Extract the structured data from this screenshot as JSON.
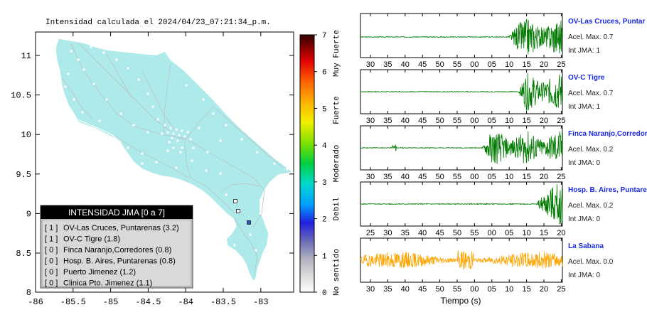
{
  "map": {
    "title": "Intensidad calculada el 2024/04/23_07:21:34_p.m.",
    "xticks": [
      "-86",
      "-85.5",
      "-85",
      "-84.5",
      "-84",
      "-83.5",
      "-83"
    ],
    "yticks": [
      "11",
      "10.5",
      "10",
      "9.5",
      "9",
      "8.5",
      "8"
    ],
    "land_color": "#aeeaea",
    "station_marker_color": "#3050c0"
  },
  "legend": {
    "title": "INTENSIDAD JMA [0 a 7]",
    "items": [
      {
        "jma": "[ 1 ]",
        "label": "OV-Las Cruces, Puntarenas (3.2)"
      },
      {
        "jma": "[ 1 ]",
        "label": "OV-C Tigre (1.8)"
      },
      {
        "jma": "[ 0 ]",
        "label": "Finca Naranjo,Corredores (0.8)"
      },
      {
        "jma": "[ 0 ]",
        "label": "Hosp. B. Aires, Puntarenas (0.8)"
      },
      {
        "jma": "[ 0 ]",
        "label": "Puerto Jimenez (1.2)"
      },
      {
        "jma": "[ 0 ]",
        "label": "Clinica Pto. Jimenez (1.1)"
      }
    ]
  },
  "colorbar": {
    "ticks": [
      "0",
      "1",
      "2",
      "3",
      "4",
      "5",
      "6",
      "7"
    ],
    "categories": [
      "No sentido",
      "Debil",
      "Moderado",
      "Fuerte",
      "Muy Fuerte"
    ]
  },
  "traces": [
    {
      "station": "OV-Las Cruces, Puntar",
      "acel_label": "Acel. Max. 0.7",
      "jma_label": "Int JMA: 1",
      "ticks": [
        "30",
        "35",
        "40",
        "45",
        "50",
        "55",
        "00",
        "05",
        "10",
        "15",
        "20",
        "25"
      ],
      "color": "#007a00",
      "noise_start": 0.75,
      "onset": 0.73,
      "amp": 0.95,
      "seed": 3
    },
    {
      "station": "OV-C Tigre",
      "acel_label": "Acel. Max. 0.7",
      "jma_label": "Int JMA: 1",
      "ticks": [
        "30",
        "35",
        "40",
        "45",
        "50",
        "55",
        "00",
        "05",
        "10",
        "15",
        "20",
        "25"
      ],
      "color": "#007a00",
      "noise_start": 0.78,
      "onset": 0.78,
      "amp": 0.95,
      "seed": 7
    },
    {
      "station": "Finca Naranjo,Corredor",
      "acel_label": "Acel. Max. 0.2",
      "jma_label": "Int JMA: 0",
      "ticks": [
        "30",
        "35",
        "40",
        "45",
        "50",
        "55",
        "00",
        "05",
        "10",
        "15",
        "20",
        "25"
      ],
      "color": "#007a00",
      "noise_start": 0.0,
      "onset": 0.6,
      "amp": 0.85,
      "seed": 11,
      "blip": 0.17
    },
    {
      "station": "Hosp. B. Aires, Puntare",
      "acel_label": "Acel. Max. 0.2",
      "jma_label": "Int JMA: 0",
      "ticks": [
        "25",
        "30",
        "35",
        "40",
        "45",
        "50",
        "55",
        "00",
        "05",
        "10",
        "15",
        "20"
      ],
      "color": "#007a00",
      "noise_start": 0.0,
      "onset": 0.87,
      "amp": 1.05,
      "seed": 5
    },
    {
      "station": "La Sabana",
      "acel_label": "Acel. Max. 0.0",
      "jma_label": "Int JMA: 0",
      "ticks": [
        "30",
        "35",
        "40",
        "45",
        "50",
        "55",
        "00",
        "05",
        "10",
        "15",
        "20",
        "25"
      ],
      "color": "#ffa500",
      "noise_start": 0.0,
      "onset": 2.0,
      "amp": 0.7,
      "seed": 19,
      "full_noise": true
    }
  ],
  "xlabel": "Tiempo (s)"
}
